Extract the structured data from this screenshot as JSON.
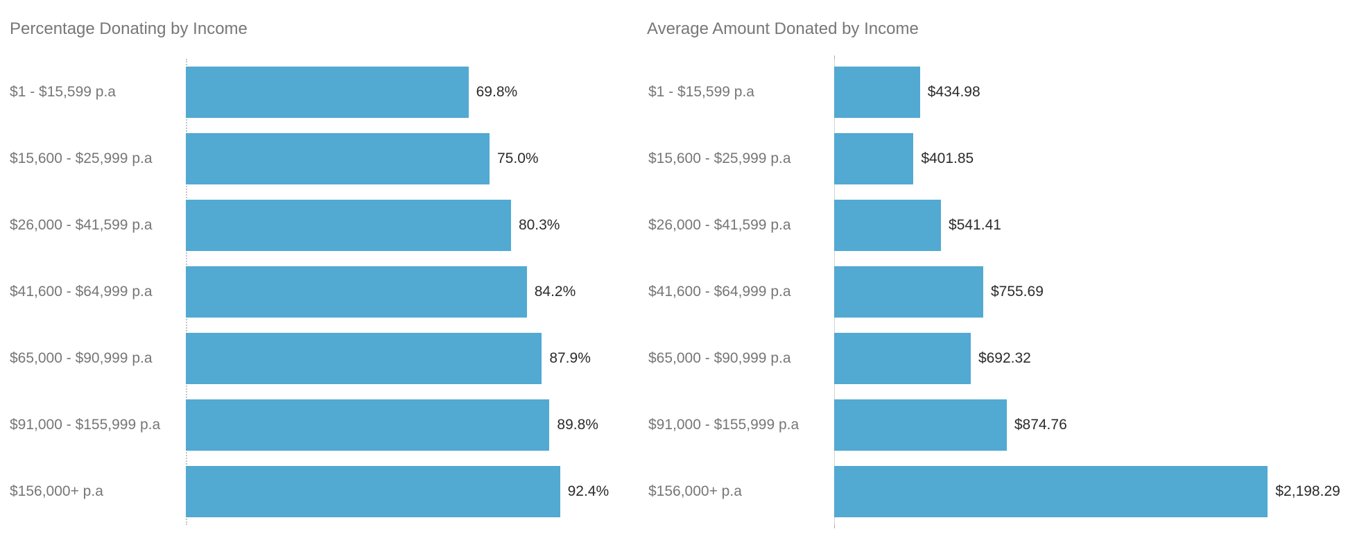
{
  "colors": {
    "bar-color": "#52a9d2",
    "title-color": "#777777",
    "category-color": "#767676",
    "value-color": "#2b2b2b",
    "axis-left-color": "#c4c4c4",
    "axis-right-color": "#d3d3d3"
  },
  "chart_data": [
    {
      "type": "bar",
      "orientation": "horizontal",
      "title": "Percentage Donating by Income",
      "categories": [
        "$1 - $15,599 p.a",
        "$15,600 - $25,999 p.a",
        "$26,000 - $41,599 p.a",
        "$41,600 - $64,999 p.a",
        "$65,000 - $90,999 p.a",
        "$91,000 - $155,999 p.a",
        "$156,000+ p.a"
      ],
      "values": [
        69.8,
        75.0,
        80.3,
        84.2,
        87.9,
        89.8,
        92.4
      ],
      "value_labels": [
        "69.8%",
        "75.0%",
        "80.3%",
        "84.2%",
        "87.9%",
        "89.8%",
        "92.4%"
      ],
      "xlabel": "",
      "ylabel": "",
      "xlim": [
        0,
        100
      ],
      "grid": false,
      "legend": false,
      "bar_color": "#52a9d2"
    },
    {
      "type": "bar",
      "orientation": "horizontal",
      "title": "Average Amount Donated by Income",
      "categories": [
        "$1 - $15,599 p.a",
        "$15,600 - $25,999 p.a",
        "$26,000 - $41,599 p.a",
        "$41,600 - $64,999 p.a",
        "$65,000 - $90,999 p.a",
        "$91,000 - $155,999 p.a",
        "$156,000+ p.a"
      ],
      "values": [
        434.98,
        401.85,
        541.41,
        755.69,
        692.32,
        874.76,
        2198.29
      ],
      "value_labels": [
        "$434.98",
        "$401.85",
        "$541.41",
        "$755.69",
        "$692.32",
        "$874.76",
        "$2,198.29"
      ],
      "xlabel": "",
      "ylabel": "",
      "xlim": [
        0,
        2320
      ],
      "grid": false,
      "legend": false,
      "bar_color": "#52a9d2"
    }
  ]
}
